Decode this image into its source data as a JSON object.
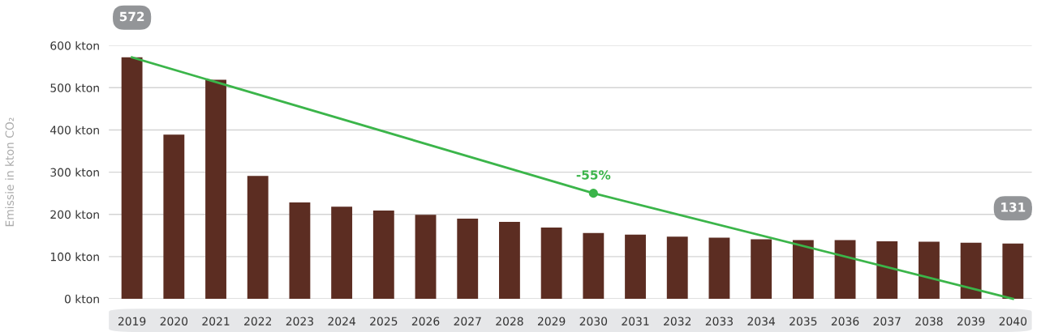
{
  "chart_data": {
    "type": "bar",
    "ylabel": "Emissie in kton CO₂",
    "categories": [
      "2019",
      "2020",
      "2021",
      "2022",
      "2023",
      "2024",
      "2025",
      "2026",
      "2027",
      "2028",
      "2029",
      "2030",
      "2031",
      "2032",
      "2033",
      "2034",
      "2035",
      "2036",
      "2037",
      "2038",
      "2039",
      "2040"
    ],
    "series": [
      {
        "color": "#5c2d22",
        "values": [
          572,
          389,
          519,
          291,
          228,
          218,
          209,
          199,
          190,
          182,
          169,
          156,
          152,
          147,
          145,
          141,
          139,
          139,
          136,
          135,
          133,
          131
        ]
      },
      {
        "type": "line",
        "color": "#3bb54a",
        "values": [
          572,
          null,
          null,
          null,
          null,
          null,
          null,
          null,
          null,
          null,
          null,
          250,
          null,
          null,
          null,
          null,
          null,
          null,
          null,
          null,
          null,
          0
        ],
        "marker": "none"
      },
      {
        "type": "scatter",
        "color": "#3bb54a",
        "values": [
          null,
          null,
          null,
          null,
          null,
          null,
          null,
          null,
          null,
          null,
          null,
          250,
          null,
          null,
          null,
          null,
          null,
          null,
          null,
          null,
          null,
          null
        ],
        "marker": "circle"
      }
    ],
    "annotations": [
      {
        "text": "572",
        "x": "2019",
        "y": 572
      },
      {
        "text": "131",
        "x": "2040",
        "y": 131
      },
      {
        "text": "-55%",
        "x": "2030",
        "y": 250
      }
    ],
    "ylim": [
      0,
      600
    ],
    "yticks": [
      {
        "value": 0,
        "label": "0 kton"
      },
      {
        "value": 100,
        "label": "100 kton"
      },
      {
        "value": 200,
        "label": "200 kton"
      },
      {
        "value": 300,
        "label": "300 kton"
      },
      {
        "value": 400,
        "label": "400 kton"
      },
      {
        "value": 500,
        "label": "500 kton"
      },
      {
        "value": 600,
        "label": "600 kton"
      }
    ],
    "grid": "y"
  }
}
